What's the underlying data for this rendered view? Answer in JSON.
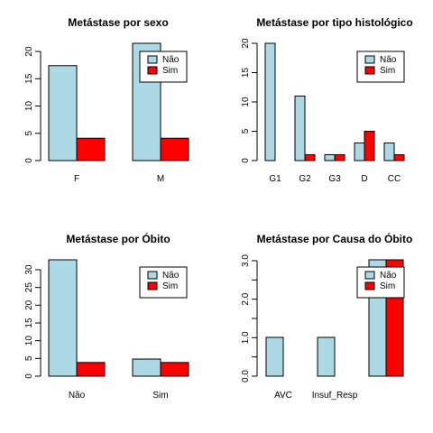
{
  "colors": {
    "nao": "#add8e6",
    "sim": "#ff0000",
    "stroke": "#000000"
  },
  "chart_data": [
    {
      "type": "bar",
      "title": "Metástase por sexo",
      "categories": [
        "F",
        "M"
      ],
      "series": [
        {
          "name": "Não",
          "values": [
            17,
            21
          ]
        },
        {
          "name": "Sim",
          "values": [
            4,
            4
          ]
        }
      ],
      "ylim": [
        0,
        21
      ],
      "yticks": [
        "0",
        "5",
        "10",
        "15",
        "20"
      ],
      "legend": "top-right"
    },
    {
      "type": "bar",
      "title": "Metástase por tipo histológico",
      "categories": [
        "G1",
        "G2",
        "G3",
        "D",
        "CC"
      ],
      "series": [
        {
          "name": "Não",
          "values": [
            20,
            11,
            1,
            3,
            3
          ]
        },
        {
          "name": "Sim",
          "values": [
            0,
            1,
            1,
            5,
            1
          ]
        }
      ],
      "ylim": [
        0,
        20
      ],
      "yticks": [
        "0",
        "5",
        "10",
        "15",
        "20"
      ],
      "legend": "top-right"
    },
    {
      "type": "bar",
      "title": "Metástase por Óbito",
      "categories": [
        "Não",
        "Sim"
      ],
      "series": [
        {
          "name": "Não",
          "values": [
            34,
            5
          ]
        },
        {
          "name": "Sim",
          "values": [
            4,
            4
          ]
        }
      ],
      "ylim": [
        0,
        34
      ],
      "yticks": [
        "0",
        "5",
        "10",
        "15",
        "20",
        "25",
        "30"
      ],
      "legend": "top-right"
    },
    {
      "type": "bar",
      "title": "Metástase por Causa do Óbito",
      "categories": [
        "AVC",
        "Insuf_Resp",
        ""
      ],
      "series": [
        {
          "name": "Não",
          "values": [
            1,
            1,
            3
          ]
        },
        {
          "name": "Sim",
          "values": [
            0,
            0,
            3
          ]
        }
      ],
      "ylim": [
        0,
        3
      ],
      "yticks": [
        "0.0",
        "0.5",
        "1.0",
        "1.5",
        "2.0",
        "2.5",
        "3.0"
      ],
      "ytickLabels": [
        "0.0",
        "",
        "1.0",
        "",
        "2.0",
        "",
        "3.0"
      ],
      "legend": "top-right"
    }
  ]
}
